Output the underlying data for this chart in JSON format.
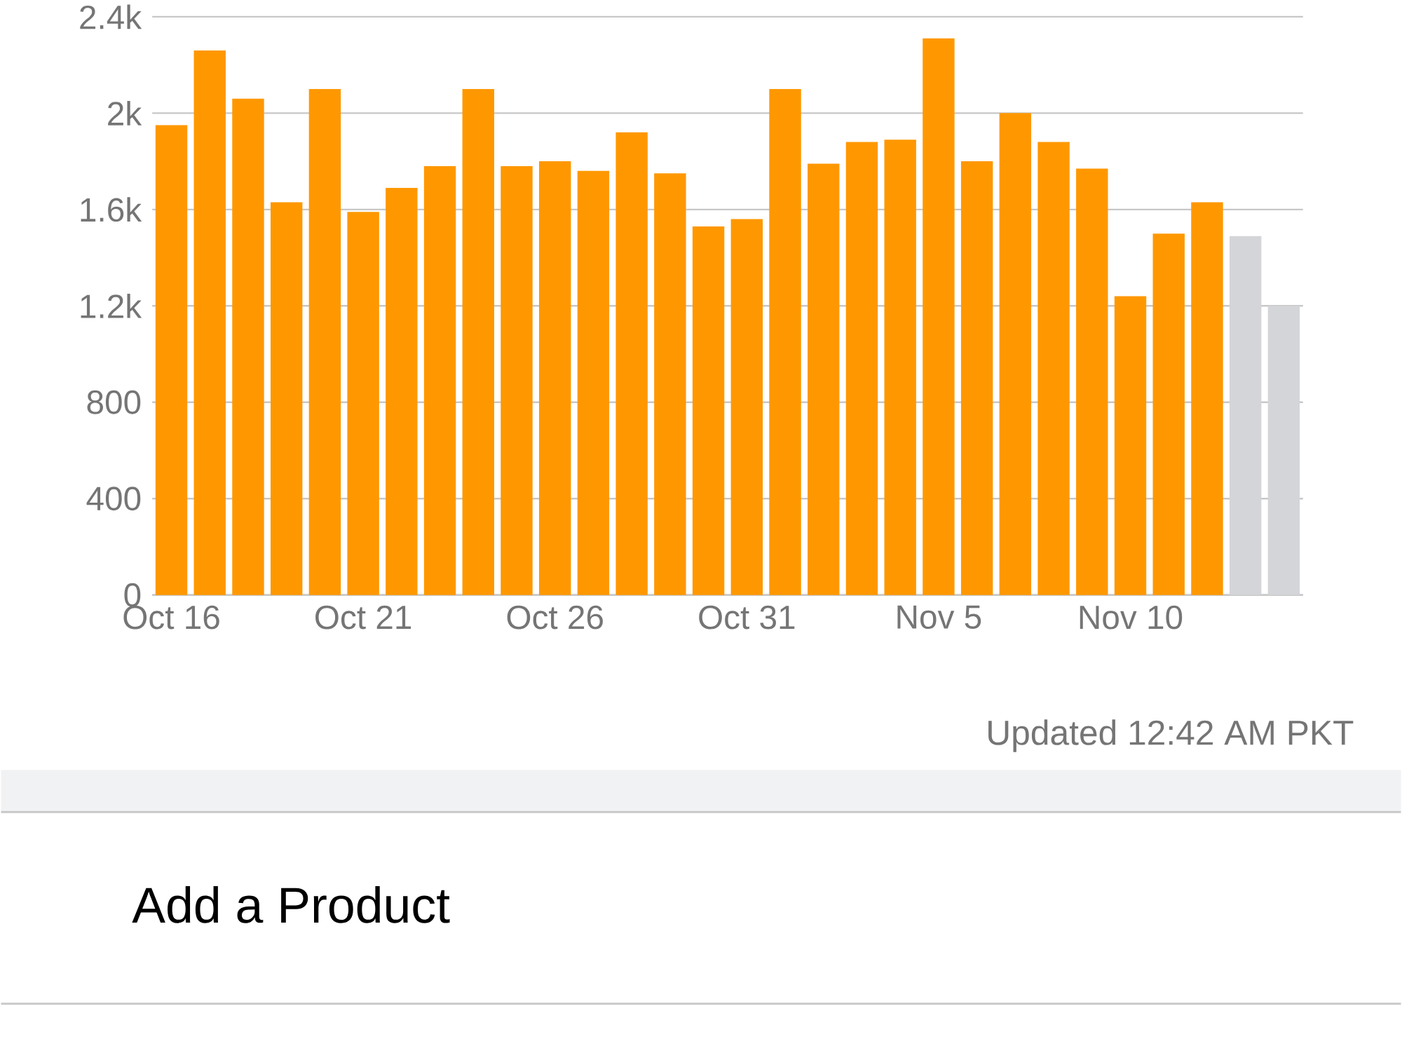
{
  "chart_data": {
    "type": "bar",
    "categories": [
      "Oct 16",
      null,
      null,
      null,
      null,
      "Oct 21",
      null,
      null,
      null,
      null,
      "Oct 26",
      null,
      null,
      null,
      null,
      "Oct 31",
      null,
      null,
      null,
      null,
      "Nov 5",
      null,
      null,
      null,
      null,
      "Nov 10",
      null,
      null,
      null,
      null
    ],
    "values": [
      1950,
      2260,
      2060,
      1630,
      2100,
      1590,
      1690,
      1780,
      2100,
      1780,
      1800,
      1760,
      1920,
      1750,
      1530,
      1560,
      2100,
      1790,
      1880,
      1890,
      2310,
      1800,
      2000,
      1880,
      1770,
      1240,
      1500,
      1630,
      1490,
      1200
    ],
    "colors": [
      "#ff9800",
      "#ff9800",
      "#ff9800",
      "#ff9800",
      "#ff9800",
      "#ff9800",
      "#ff9800",
      "#ff9800",
      "#ff9800",
      "#ff9800",
      "#ff9800",
      "#ff9800",
      "#ff9800",
      "#ff9800",
      "#ff9800",
      "#ff9800",
      "#ff9800",
      "#ff9800",
      "#ff9800",
      "#ff9800",
      "#ff9800",
      "#ff9800",
      "#ff9800",
      "#ff9800",
      "#ff9800",
      "#ff9800",
      "#ff9800",
      "#ff9800",
      "#d3d5d8",
      "#d3d5d8"
    ],
    "ylim": [
      0,
      2400
    ],
    "yticks": [
      0,
      400,
      800,
      {
        "value": 1200,
        "label": "1.2k"
      },
      {
        "value": 1600,
        "label": "1.6k"
      },
      {
        "value": 2000,
        "label": "2k"
      },
      {
        "value": 2400,
        "label": "2.4k"
      }
    ],
    "grid": "y",
    "annotations": [
      "Updated 12:42 AM PKT",
      "Add a Product"
    ]
  }
}
